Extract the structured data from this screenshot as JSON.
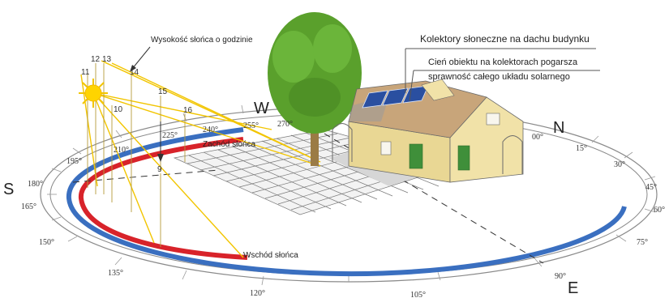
{
  "labels": {
    "sun_height_hour": "Wysokość słońca o godzinie",
    "collectors_roof": "Kolektory słoneczne na dachu budynku",
    "shadow_line1": "Cień obiektu na kolektorach pogarsza",
    "shadow_line2": "sprawność całego układu solarnego",
    "sunset": "Zachód słońca",
    "sunrise": "Wschód słońca"
  },
  "directions": {
    "south": "S",
    "west": "W",
    "north": "N",
    "east": "E"
  },
  "hours": [
    "9",
    "10",
    "11",
    "12",
    "13",
    "14",
    "15",
    "16"
  ],
  "azimuths": [
    "00°",
    "15°",
    "30°",
    "45°",
    "60°",
    "75°",
    "90°",
    "105°",
    "120°",
    "135°",
    "150°",
    "165°",
    "180°",
    "195°",
    "210°",
    "225°",
    "240°",
    "255°",
    "270°"
  ],
  "colors": {
    "summer_path": "#3a6fc0",
    "winter_path": "#d8232a",
    "sun_rays": "#f2c500",
    "tree": "#5aa02c",
    "house_wall": "#f1e2a8",
    "roof": "#c8a57a"
  }
}
